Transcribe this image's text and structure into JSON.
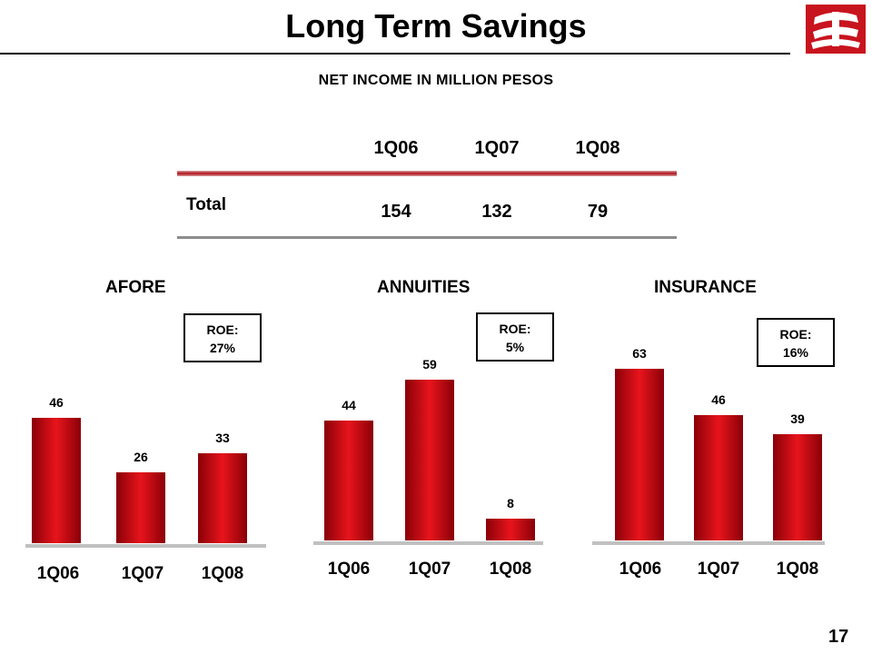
{
  "title": "Long Term Savings",
  "subtitle": "NET INCOME IN MILLION PESOS",
  "page_number": "17",
  "summary": {
    "headers": [
      "1Q06",
      "1Q07",
      "1Q08"
    ],
    "row_label": "Total",
    "values": [
      "154",
      "132",
      "79"
    ]
  },
  "roe": {
    "afore": [
      "ROE:",
      "27%"
    ],
    "annuities": [
      "ROE:",
      "5%"
    ],
    "insurance": [
      "ROE:",
      "16%"
    ]
  },
  "colors": {
    "accent": "#c8141e",
    "bar_dark": "#8a0008",
    "bar_light": "#e8141c",
    "baseline": "#c0c0c0"
  },
  "chart_data": [
    {
      "type": "bar",
      "title": "AFORE",
      "categories": [
        "1Q06",
        "1Q07",
        "1Q08"
      ],
      "values": [
        46,
        26,
        33
      ]
    },
    {
      "type": "bar",
      "title": "ANNUITIES",
      "categories": [
        "1Q06",
        "1Q07",
        "1Q08"
      ],
      "values": [
        44,
        59,
        8
      ]
    },
    {
      "type": "bar",
      "title": "INSURANCE",
      "categories": [
        "1Q06",
        "1Q07",
        "1Q08"
      ],
      "values": [
        63,
        46,
        39
      ]
    }
  ]
}
